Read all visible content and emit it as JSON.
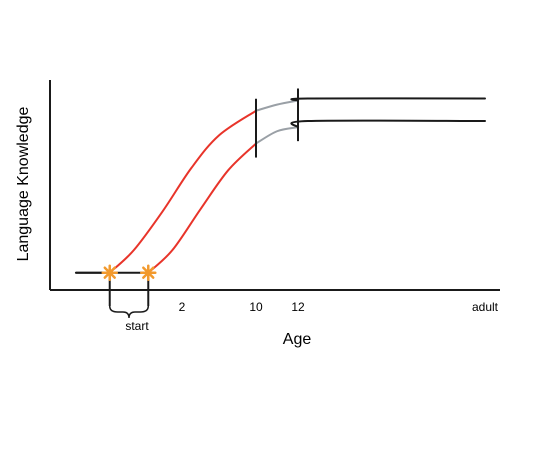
{
  "chart_data": {
    "type": "line",
    "xlabel": "Age",
    "ylabel": "Language Knowledge",
    "x_ticks": [
      "2",
      "10",
      "12",
      "adult"
    ],
    "x_tick_values": [
      2,
      10,
      12,
      50
    ],
    "brace_label": "start",
    "start_markers": [
      {
        "x": -5.5,
        "y": 0.06
      },
      {
        "x": -1.5,
        "y": 0.06
      }
    ],
    "milestone_marks": [
      10,
      12
    ],
    "series": [
      {
        "role": "upper",
        "segments": [
          {
            "color": "#1a1a1a",
            "points": [
              [
                -9,
                0.06
              ],
              [
                -5.5,
                0.06
              ]
            ]
          },
          {
            "color": "#e8342a",
            "points": [
              [
                -5.5,
                0.06
              ],
              [
                -3,
                0.17
              ],
              [
                0,
                0.36
              ],
              [
                3,
                0.57
              ],
              [
                6,
                0.73
              ],
              [
                10,
                0.85
              ]
            ]
          },
          {
            "color": "#9aa0a6",
            "points": [
              [
                10,
                0.85
              ],
              [
                11,
                0.88
              ],
              [
                12,
                0.9
              ]
            ]
          },
          {
            "color": "#1a1a1a",
            "points": [
              [
                12,
                0.9
              ],
              [
                14,
                0.91
              ],
              [
                50,
                0.91
              ]
            ]
          }
        ]
      },
      {
        "role": "lower",
        "segments": [
          {
            "color": "#1a1a1a",
            "points": [
              [
                -9,
                0.06
              ],
              [
                -1.5,
                0.06
              ]
            ]
          },
          {
            "color": "#e8342a",
            "points": [
              [
                -1.5,
                0.06
              ],
              [
                1,
                0.17
              ],
              [
                4,
                0.37
              ],
              [
                7,
                0.56
              ],
              [
                10,
                0.69
              ]
            ]
          },
          {
            "color": "#9aa0a6",
            "points": [
              [
                10,
                0.69
              ],
              [
                11,
                0.75
              ],
              [
                12,
                0.77
              ]
            ]
          },
          {
            "color": "#1a1a1a",
            "points": [
              [
                12,
                0.77
              ],
              [
                14,
                0.8
              ],
              [
                50,
                0.8
              ]
            ]
          }
        ]
      }
    ],
    "colors": {
      "axis": "#1a1a1a",
      "critical": "#e8342a",
      "transition": "#9aa0a6",
      "plateau": "#1a1a1a",
      "marker": "#f29a2e"
    },
    "grid": false,
    "legend": "none"
  }
}
